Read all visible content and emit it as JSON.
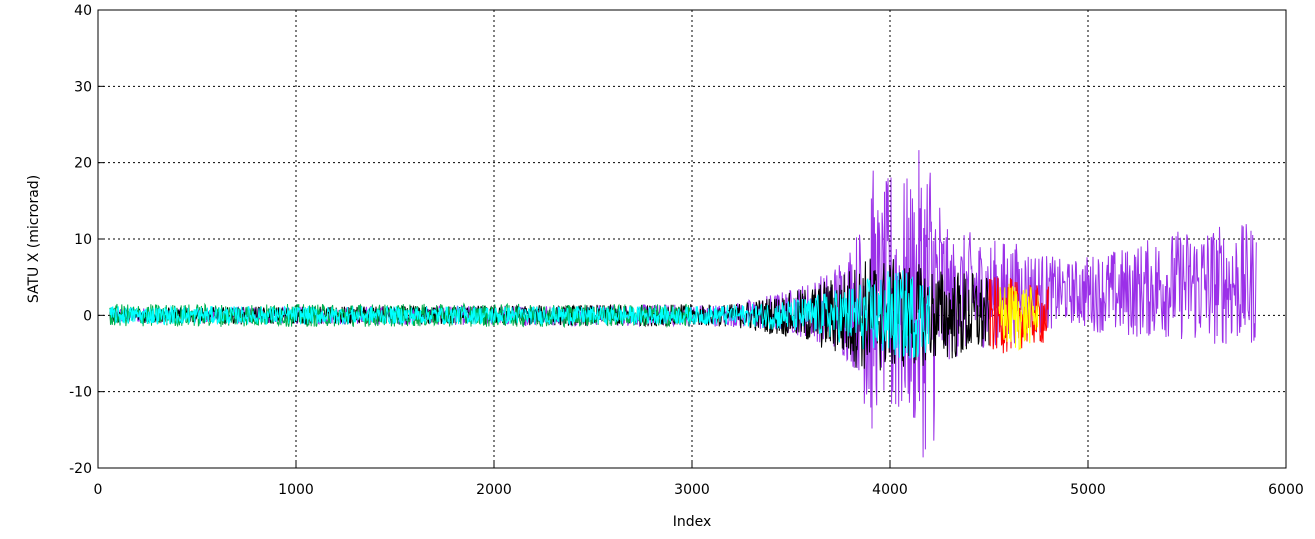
{
  "chart_data": {
    "type": "line",
    "title": "",
    "xlabel": "Index",
    "ylabel": "SATU X (microrad)",
    "xlim": [
      0,
      6000
    ],
    "ylim": [
      -20,
      40
    ],
    "xticks": [
      0,
      1000,
      2000,
      3000,
      4000,
      5000,
      6000
    ],
    "yticks": [
      -20,
      -10,
      0,
      10,
      20,
      30,
      40
    ],
    "xtick_labels": [
      "0",
      "1000",
      "2000",
      "3000",
      "4000",
      "5000",
      "6000"
    ],
    "ytick_labels": [
      "-20",
      "-10",
      "0",
      "10",
      "20",
      "30",
      "40"
    ],
    "grid": true,
    "grid_style": "dotted",
    "legend": null,
    "series": [
      {
        "color": "#9b30e8",
        "x": [
          60,
          3200,
          3500,
          3700,
          3850,
          3900,
          3950,
          4000,
          4100,
          4150,
          4200,
          4300,
          4400,
          4500,
          4600,
          4700,
          4800,
          4900,
          5000,
          5200,
          5400,
          5600,
          5850
        ],
        "y_center": [
          0,
          0,
          0.5,
          1,
          2,
          2,
          2,
          2,
          2,
          2,
          2,
          2,
          3,
          3,
          3,
          3,
          3,
          3,
          3,
          3,
          4,
          4,
          4
        ],
        "y_half_range": [
          1,
          1.5,
          3,
          5,
          10,
          20,
          12,
          18,
          16,
          20,
          22,
          8,
          8,
          7,
          7,
          6,
          5,
          4,
          5,
          6,
          7,
          8,
          8
        ]
      },
      {
        "color": "#000000",
        "x": [
          60,
          3200,
          3500,
          3700,
          3900,
          4100,
          4300,
          4400,
          4500
        ],
        "y_center": [
          0,
          0,
          0,
          0,
          0,
          0,
          0,
          0,
          0
        ],
        "y_half_range": [
          1,
          1.5,
          3,
          5,
          8,
          7,
          6,
          6,
          5
        ]
      },
      {
        "color": "#ff0000",
        "x": [
          4500,
          4600,
          4700,
          4800
        ],
        "y_center": [
          0,
          0,
          0,
          0
        ],
        "y_half_range": [
          5,
          5,
          4,
          4
        ]
      },
      {
        "color": "#ffff00",
        "x": [
          4550,
          4650,
          4750
        ],
        "y_center": [
          0,
          0,
          0
        ],
        "y_half_range": [
          4,
          5,
          3
        ]
      },
      {
        "color": "#00b050",
        "x": [
          60,
          1500,
          3000
        ],
        "y_center": [
          0,
          0,
          0
        ],
        "y_half_range": [
          1.5,
          1.5,
          1.5
        ]
      },
      {
        "color": "#00ffff",
        "x": [
          60,
          1000,
          2000,
          3000,
          3300,
          3600,
          3800,
          4000,
          4100,
          4200
        ],
        "y_center": [
          0,
          0,
          0,
          0,
          0,
          0,
          0,
          0,
          0,
          0
        ],
        "y_half_range": [
          1.2,
          1.2,
          1.2,
          1.2,
          1.5,
          2.5,
          4,
          6,
          6,
          5
        ]
      }
    ]
  }
}
